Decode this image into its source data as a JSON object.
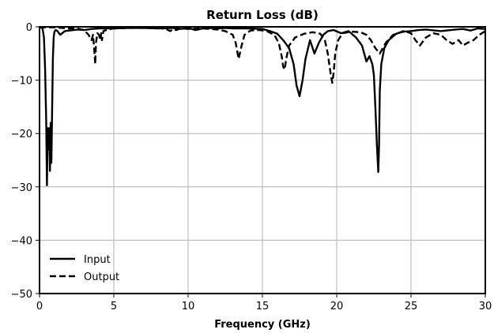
{
  "chart_data": {
    "type": "line",
    "title": "Return Loss (dB)",
    "xlabel": "Frequency (GHz)",
    "ylabel": "",
    "xlim": [
      0,
      30
    ],
    "ylim": [
      -50,
      0
    ],
    "xticks": [
      0,
      5,
      10,
      15,
      20,
      25,
      30
    ],
    "yticks": [
      0,
      -10,
      -20,
      -30,
      -40,
      -50
    ],
    "xtick_labels": [
      "0",
      "5",
      "10",
      "15",
      "20",
      "25",
      "30"
    ],
    "ytick_labels": [
      "0",
      "−10",
      "−20",
      "−30",
      "−40",
      "−50"
    ],
    "grid": true,
    "legend": {
      "position": "bottom-left",
      "entries": [
        {
          "label": "Input",
          "style": "solid"
        },
        {
          "label": "Output",
          "style": "dashed"
        }
      ]
    },
    "series": [
      {
        "name": "Input",
        "style": "solid",
        "color": "#000000",
        "x": [
          0.0,
          0.2,
          0.3,
          0.38,
          0.45,
          0.5,
          0.55,
          0.6,
          0.65,
          0.7,
          0.75,
          0.8,
          0.85,
          0.9,
          0.95,
          1.0,
          1.05,
          1.1,
          1.2,
          1.4,
          1.7,
          2.0,
          2.3,
          2.6,
          3.0,
          3.5,
          4.0,
          4.5,
          5.0,
          6.0,
          7.0,
          8.0,
          9.0,
          9.5,
          10.0,
          10.5,
          11.0,
          11.5,
          12.0,
          12.5,
          13.0,
          14.0,
          15.0,
          15.5,
          16.0,
          16.4,
          16.8,
          17.1,
          17.3,
          17.5,
          17.7,
          17.9,
          18.2,
          18.5,
          18.8,
          19.1,
          19.4,
          19.8,
          20.3,
          20.8,
          21.3,
          21.7,
          22.0,
          22.2,
          22.4,
          22.5,
          22.6,
          22.7,
          22.8,
          22.85,
          22.9,
          23.0,
          23.2,
          23.5,
          24.0,
          24.5,
          25.0,
          25.5,
          26.0,
          27.0,
          28.0,
          28.5,
          29.0,
          29.5,
          30.0
        ],
        "values": [
          0,
          -0.3,
          -2,
          -8,
          -18,
          -29.7,
          -19,
          -23,
          -19,
          -27,
          -18,
          -25.5,
          -15,
          -6,
          -2,
          -1,
          -0.7,
          -0.6,
          -0.8,
          -1.5,
          -0.8,
          -0.7,
          -0.6,
          -0.5,
          -0.6,
          -0.4,
          -0.3,
          -0.3,
          -0.3,
          -0.2,
          -0.2,
          -0.3,
          -0.2,
          -0.4,
          -0.2,
          -0.6,
          -0.3,
          -0.2,
          -0.3,
          -0.2,
          -0.3,
          -0.3,
          -0.4,
          -0.8,
          -1.3,
          -2.5,
          -4,
          -7,
          -11,
          -13,
          -10,
          -6,
          -2.5,
          -5,
          -3,
          -1.5,
          -0.8,
          -0.6,
          -1.2,
          -0.8,
          -2,
          -3.5,
          -6.5,
          -5.5,
          -7,
          -9,
          -15,
          -22,
          -27.2,
          -22,
          -12,
          -7,
          -4,
          -2.5,
          -1.3,
          -0.9,
          -0.8,
          -0.6,
          -0.5,
          -0.8,
          -0.5,
          -0.4,
          -0.7,
          -0.3,
          -0.4
        ]
      },
      {
        "name": "Output",
        "style": "dashed",
        "color": "#000000",
        "x": [
          0.0,
          1.0,
          1.5,
          2.0,
          2.5,
          3.0,
          3.3,
          3.5,
          3.6,
          3.7,
          3.75,
          3.8,
          3.9,
          4.0,
          4.1,
          4.15,
          4.2,
          4.3,
          4.6,
          5.0,
          6.0,
          7.0,
          8.0,
          8.5,
          8.8,
          9.0,
          9.2,
          9.5,
          10.0,
          11.0,
          12.0,
          12.5,
          13.0,
          13.2,
          13.4,
          13.6,
          13.8,
          14.2,
          14.8,
          15.3,
          15.8,
          16.1,
          16.3,
          16.4,
          16.5,
          16.6,
          16.8,
          17.2,
          17.8,
          18.4,
          18.9,
          19.2,
          19.4,
          19.6,
          19.7,
          19.8,
          19.9,
          20.1,
          20.4,
          21.0,
          21.6,
          22.0,
          22.3,
          22.6,
          22.9,
          23.3,
          23.8,
          24.5,
          25.0,
          25.3,
          25.6,
          26.0,
          26.5,
          27.0,
          27.4,
          27.8,
          28.2,
          28.5,
          28.8,
          29.2,
          29.6,
          30.0
        ],
        "values": [
          -0.1,
          -0.1,
          -0.2,
          -0.3,
          -0.3,
          -0.6,
          -1.5,
          -2.5,
          -1.5,
          -5,
          -7,
          -3,
          -1.2,
          -1.5,
          -2.5,
          -1.2,
          -2.5,
          -0.8,
          -0.5,
          -0.3,
          -0.2,
          -0.2,
          -0.2,
          -0.4,
          -0.8,
          -0.4,
          -0.6,
          -0.3,
          -0.4,
          -0.3,
          -0.5,
          -0.8,
          -1.5,
          -3,
          -6,
          -3.5,
          -1.5,
          -0.7,
          -0.6,
          -0.8,
          -1.5,
          -3,
          -5.5,
          -7.5,
          -8,
          -6,
          -3.5,
          -2,
          -1.3,
          -1,
          -1.3,
          -2.5,
          -5,
          -9,
          -10.5,
          -8.5,
          -5,
          -2.5,
          -1.2,
          -0.9,
          -1,
          -1.5,
          -2.5,
          -4,
          -5,
          -3,
          -1.5,
          -0.8,
          -1.2,
          -2.5,
          -3.5,
          -2,
          -1.2,
          -1.5,
          -2.5,
          -3.2,
          -2.5,
          -3.5,
          -3,
          -2.5,
          -1.5,
          -0.8
        ]
      }
    ]
  }
}
